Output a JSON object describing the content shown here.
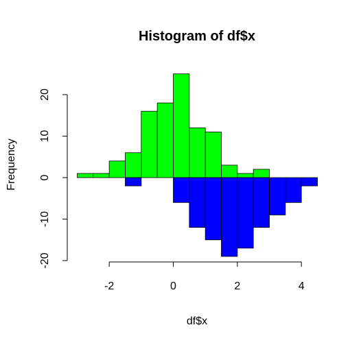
{
  "chart_data": {
    "type": "bar",
    "title": "Histogram of df$x",
    "xlabel": "df$x",
    "ylabel": "Frequency",
    "xlim": [
      -3,
      4.5
    ],
    "ylim": [
      -20,
      25
    ],
    "x_ticks": [
      -2,
      0,
      2,
      4
    ],
    "y_ticks": [
      -20,
      -10,
      0,
      10,
      20
    ],
    "bin_width": 0.5,
    "series": [
      {
        "color": "#00ff00",
        "bins": [
          {
            "x0": -3.0,
            "x1": -2.5,
            "value": 1
          },
          {
            "x0": -2.5,
            "x1": -2.0,
            "value": 1
          },
          {
            "x0": -2.0,
            "x1": -1.5,
            "value": 4
          },
          {
            "x0": -1.5,
            "x1": -1.0,
            "value": 6
          },
          {
            "x0": -1.0,
            "x1": -0.5,
            "value": 16
          },
          {
            "x0": -0.5,
            "x1": 0.0,
            "value": 18
          },
          {
            "x0": 0.0,
            "x1": 0.5,
            "value": 25
          },
          {
            "x0": 0.5,
            "x1": 1.0,
            "value": 12
          },
          {
            "x0": 1.0,
            "x1": 1.5,
            "value": 11
          },
          {
            "x0": 1.5,
            "x1": 2.0,
            "value": 3
          },
          {
            "x0": 2.0,
            "x1": 2.5,
            "value": 1
          },
          {
            "x0": 2.5,
            "x1": 3.0,
            "value": 2
          }
        ]
      },
      {
        "color": "#0000ff",
        "bins": [
          {
            "x0": -1.5,
            "x1": -1.0,
            "value": -2
          },
          {
            "x0": 0.0,
            "x1": 0.5,
            "value": -6
          },
          {
            "x0": 0.5,
            "x1": 1.0,
            "value": -12
          },
          {
            "x0": 1.0,
            "x1": 1.5,
            "value": -15
          },
          {
            "x0": 1.5,
            "x1": 2.0,
            "value": -19
          },
          {
            "x0": 2.0,
            "x1": 2.5,
            "value": -17
          },
          {
            "x0": 2.5,
            "x1": 3.0,
            "value": -12
          },
          {
            "x0": 3.0,
            "x1": 3.5,
            "value": -9
          },
          {
            "x0": 3.5,
            "x1": 4.0,
            "value": -6
          },
          {
            "x0": 4.0,
            "x1": 4.5,
            "value": -2
          }
        ]
      }
    ]
  }
}
